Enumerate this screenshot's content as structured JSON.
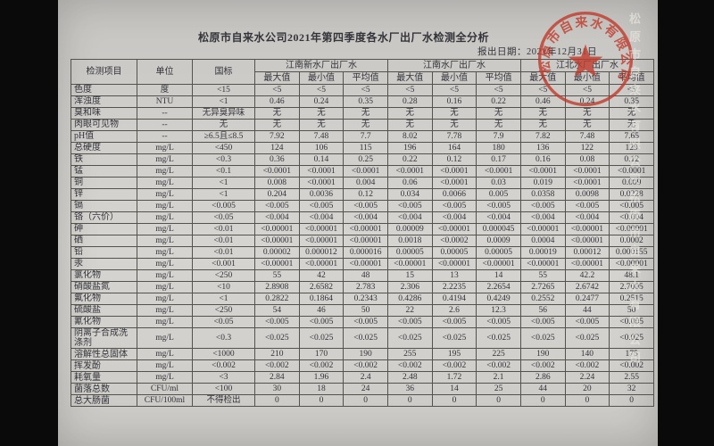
{
  "colors": {
    "paper": "#d4d2ce",
    "background_bars": "#0a0a0a",
    "ink": "#33333a",
    "seal_red": "#c03a2b",
    "grid_line": "#54524d"
  },
  "photo": {
    "title": "松原市自来水公司2021年第四季度各水厂出厂水检测全分析",
    "report_date": "报出日期：2021年12月31日",
    "stamp": {
      "arc_text": "松原市自来水有限公司",
      "icon": "star-icon",
      "color": "#c03a2b"
    },
    "watermark_text": "松原市自来水有限公司",
    "table": {
      "header": {
        "item": "检测项目",
        "unit": "单位",
        "standard": "国标",
        "groups": [
          {
            "label": "江南新水厂出厂水"
          },
          {
            "label": "江南水厂出厂水"
          },
          {
            "label": "江北水厂出厂水"
          }
        ],
        "sub": [
          "最大值",
          "最小值",
          "平均值"
        ]
      },
      "rows": [
        {
          "item": "色度",
          "unit": "度",
          "standard": "<15",
          "values": [
            "<5",
            "<5",
            "<5",
            "<5",
            "<5",
            "<5",
            "<5",
            "<5",
            "<5"
          ]
        },
        {
          "item": "浑浊度",
          "unit": "NTU",
          "standard": "<1",
          "values": [
            "0.46",
            "0.24",
            "0.35",
            "0.28",
            "0.16",
            "0.22",
            "0.46",
            "0.24",
            "0.35"
          ]
        },
        {
          "item": "臭和味",
          "unit": "--",
          "standard": "无异臭异味",
          "values": [
            "无",
            "无",
            "无",
            "无",
            "无",
            "无",
            "无",
            "无",
            "无"
          ]
        },
        {
          "item": "肉眼可见物",
          "unit": "--",
          "standard": "无",
          "values": [
            "无",
            "无",
            "无",
            "无",
            "无",
            "无",
            "无",
            "无",
            "无"
          ]
        },
        {
          "item": "pH值",
          "unit": "--",
          "standard": "≥6.5且≤8.5",
          "values": [
            "7.92",
            "7.48",
            "7.7",
            "8.02",
            "7.78",
            "7.9",
            "7.82",
            "7.48",
            "7.65"
          ]
        },
        {
          "item": "总硬度",
          "unit": "mg/L",
          "standard": "<450",
          "values": [
            "124",
            "106",
            "115",
            "196",
            "164",
            "180",
            "136",
            "122",
            "129"
          ]
        },
        {
          "item": "铁",
          "unit": "mg/L",
          "standard": "<0.3",
          "values": [
            "0.36",
            "0.14",
            "0.25",
            "0.22",
            "0.12",
            "0.17",
            "0.16",
            "0.08",
            "0.12"
          ]
        },
        {
          "item": "锰",
          "unit": "mg/L",
          "standard": "<0.1",
          "values": [
            "<0.0001",
            "<0.0001",
            "<0.0001",
            "<0.0001",
            "<0.0001",
            "<0.0001",
            "<0.0001",
            "<0.0001",
            "<0.0001"
          ]
        },
        {
          "item": "铜",
          "unit": "mg/L",
          "standard": "<1",
          "values": [
            "0.008",
            "<0.0001",
            "0.004",
            "0.06",
            "<0.0001",
            "0.03",
            "0.019",
            "<0.0001",
            "0.009"
          ]
        },
        {
          "item": "锌",
          "unit": "mg/L",
          "standard": "<1",
          "values": [
            "0.204",
            "0.0036",
            "0.12",
            "0.034",
            "0.0066",
            "0.005",
            "0.0358",
            "0.0098",
            "0.0228"
          ]
        },
        {
          "item": "镉",
          "unit": "mg/L",
          "standard": "<0.005",
          "values": [
            "<0.005",
            "<0.005",
            "<0.005",
            "<0.005",
            "<0.005",
            "<0.005",
            "<0.005",
            "<0.005",
            "<0.005"
          ]
        },
        {
          "item": "铬（六价）",
          "unit": "mg/L",
          "standard": "<0.05",
          "values": [
            "<0.004",
            "<0.004",
            "<0.004",
            "<0.004",
            "<0.004",
            "<0.004",
            "<0.004",
            "<0.004",
            "<0.004"
          ]
        },
        {
          "item": "砷",
          "unit": "mg/L",
          "standard": "<0.01",
          "values": [
            "<0.00001",
            "<0.00001",
            "<0.00001",
            "0.00009",
            "<0.00001",
            "0.000045",
            "<0.00001",
            "<0.00001",
            "<0.00001"
          ]
        },
        {
          "item": "硒",
          "unit": "mg/L",
          "standard": "<0.01",
          "values": [
            "<0.00001",
            "<0.00001",
            "<0.00001",
            "0.0018",
            "<0.0002",
            "0.0009",
            "0.0004",
            "<0.00001",
            "0.0002"
          ]
        },
        {
          "item": "铅",
          "unit": "mg/L",
          "standard": "<0.01",
          "values": [
            "0.00002",
            "0.000012",
            "0.000016",
            "0.00005",
            "0.00005",
            "0.00005",
            "0.00019",
            "0.00012",
            "0.000155"
          ]
        },
        {
          "item": "汞",
          "unit": "mg/L",
          "standard": "<0.001",
          "values": [
            "<0.00001",
            "<0.00001",
            "<0.00001",
            "<0.00001",
            "<0.00001",
            "<0.00001",
            "<0.00001",
            "<0.00001",
            "<0.00001"
          ]
        },
        {
          "item": "氯化物",
          "unit": "mg/L",
          "standard": "<250",
          "values": [
            "55",
            "42",
            "48",
            "15",
            "13",
            "14",
            "55",
            "42.2",
            "48.1"
          ]
        },
        {
          "item": "硝酸盐氮",
          "unit": "mg/L",
          "standard": "<10",
          "values": [
            "2.8908",
            "2.6582",
            "2.783",
            "2.306",
            "2.2235",
            "2.2654",
            "2.7265",
            "2.6742",
            "2.7005"
          ]
        },
        {
          "item": "氟化物",
          "unit": "mg/L",
          "standard": "<1",
          "values": [
            "0.2822",
            "0.1864",
            "0.2343",
            "0.4286",
            "0.4194",
            "0.4249",
            "0.2552",
            "0.2477",
            "0.2515"
          ]
        },
        {
          "item": "硫酸盐",
          "unit": "mg/L",
          "standard": "<250",
          "values": [
            "54",
            "46",
            "50",
            "22",
            "2.6",
            "12.3",
            "56",
            "44",
            "50"
          ]
        },
        {
          "item": "氰化物",
          "unit": "mg/L",
          "standard": "<0.05",
          "values": [
            "<0.005",
            "<0.005",
            "<0.005",
            "<0.005",
            "<0.005",
            "<0.005",
            "<0.005",
            "<0.005",
            "<0.005"
          ]
        },
        {
          "item": "阴离子合成洗涤剂",
          "unit": "mg/L",
          "standard": "<0.3",
          "values": [
            "<0.025",
            "<0.025",
            "<0.025",
            "<0.025",
            "<0.025",
            "<0.025",
            "<0.025",
            "<0.025",
            "<0.025"
          ]
        },
        {
          "item": "溶解性总固体",
          "unit": "mg/L",
          "standard": "<1000",
          "values": [
            "210",
            "170",
            "190",
            "255",
            "195",
            "225",
            "190",
            "140",
            "175"
          ]
        },
        {
          "item": "挥发酚",
          "unit": "mg/L",
          "standard": "<0.002",
          "values": [
            "<0.002",
            "<0.002",
            "<0.002",
            "<0.002",
            "<0.002",
            "<0.002",
            "<0.002",
            "<0.002",
            "<0.002"
          ]
        },
        {
          "item": "耗氧量",
          "unit": "mg/L",
          "standard": "<3",
          "values": [
            "2.84",
            "1.96",
            "2.4",
            "2.48",
            "1.72",
            "2.1",
            "2.86",
            "2.24",
            "2.55"
          ]
        },
        {
          "item": "菌落总数",
          "unit": "CFU/ml",
          "standard": "<100",
          "values": [
            "30",
            "18",
            "24",
            "36",
            "14",
            "25",
            "44",
            "20",
            "32"
          ]
        },
        {
          "item": "总大肠菌",
          "unit": "CFU/100ml",
          "standard": "不得检出",
          "values": [
            "0",
            "0",
            "0",
            "0",
            "0",
            "0",
            "0",
            "0",
            "0"
          ]
        }
      ]
    }
  }
}
